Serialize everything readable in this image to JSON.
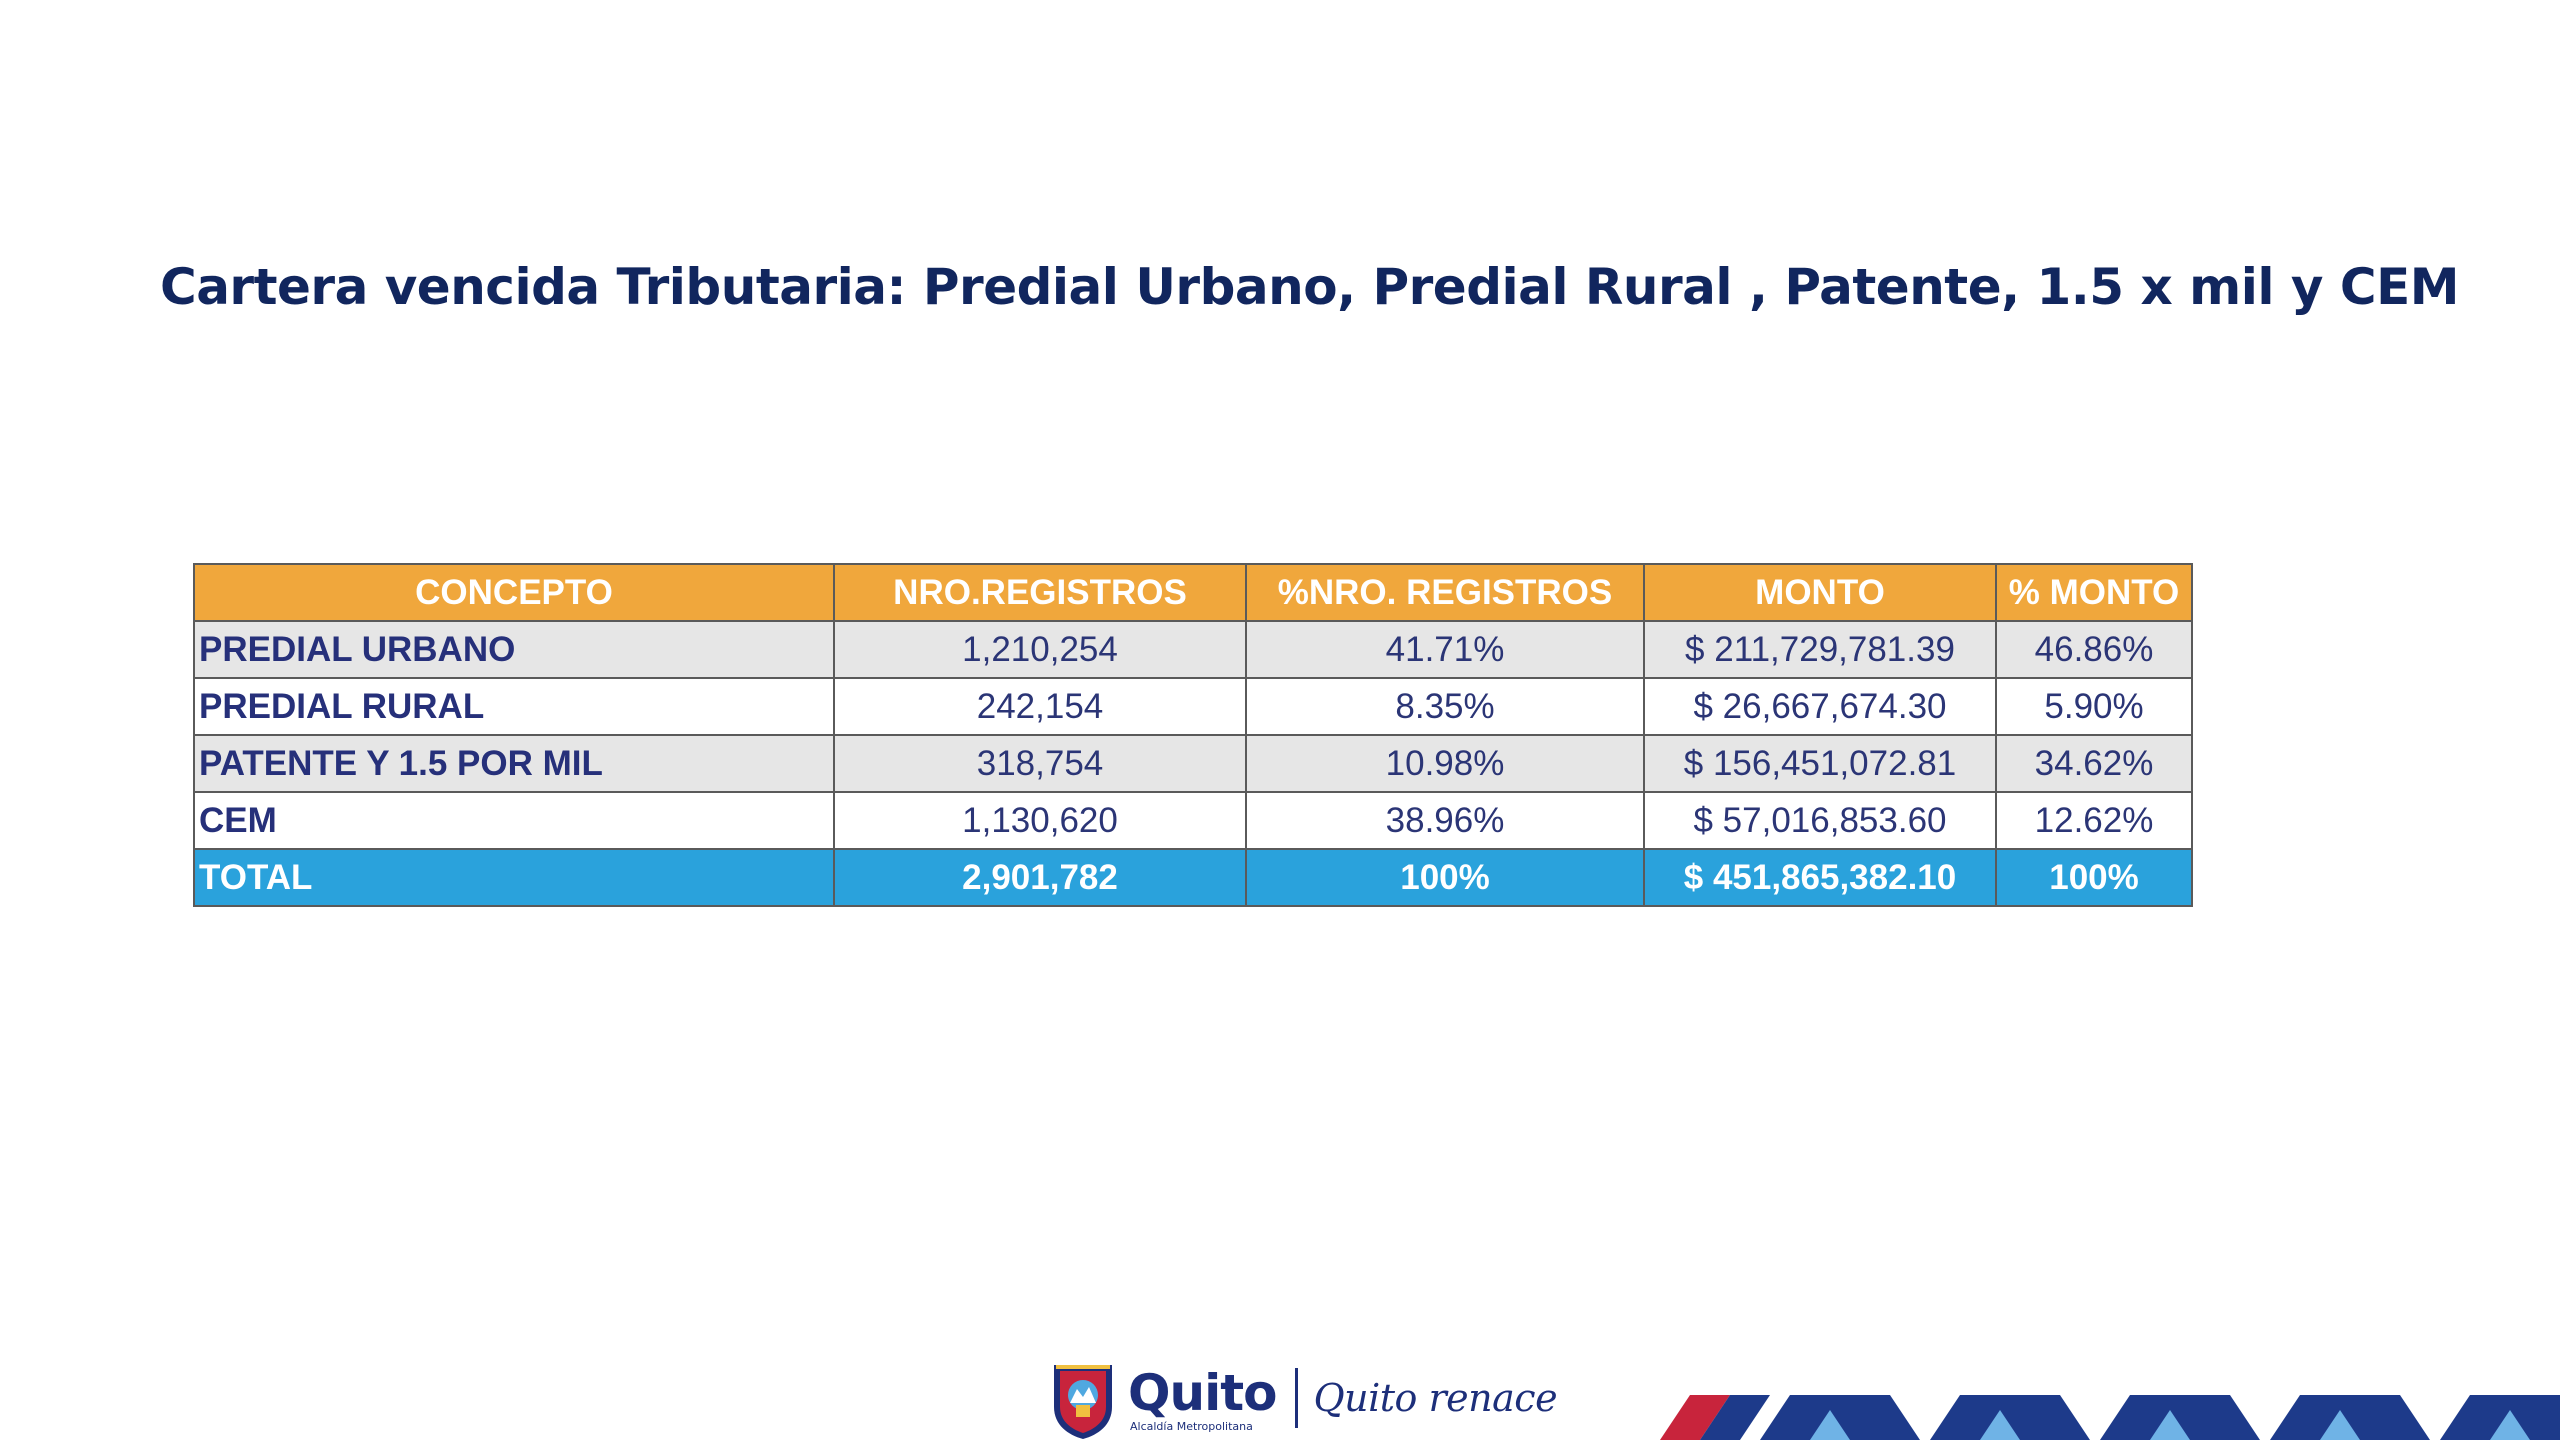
{
  "slide": {
    "title": "Cartera vencida Tributaria: Predial Urbano, Predial Rural , Patente, 1.5 x mil y CEM"
  },
  "table": {
    "headers": [
      "CONCEPTO",
      "NRO.REGISTROS",
      "%NRO. REGISTROS",
      "MONTO",
      "% MONTO"
    ],
    "rows": [
      {
        "concepto": "PREDIAL URBANO",
        "nro_registros": "1,210,254",
        "pct_nro_registros": "41.71%",
        "monto": "$ 211,729,781.39",
        "pct_monto": "46.86%"
      },
      {
        "concepto": "PREDIAL RURAL",
        "nro_registros": "242,154",
        "pct_nro_registros": "8.35%",
        "monto": "$ 26,667,674.30",
        "pct_monto": "5.90%"
      },
      {
        "concepto": "PATENTE Y 1.5 POR MIL",
        "nro_registros": "318,754",
        "pct_nro_registros": "10.98%",
        "monto": "$ 156,451,072.81",
        "pct_monto": "34.62%"
      },
      {
        "concepto": "CEM",
        "nro_registros": "1,130,620",
        "pct_nro_registros": "38.96%",
        "monto": "$ 57,016,853.60",
        "pct_monto": "12.62%"
      }
    ],
    "total": {
      "concepto": "TOTAL",
      "nro_registros": "2,901,782",
      "pct_nro_registros": "100%",
      "monto": "$ 451,865,382.10",
      "pct_monto": "100%"
    }
  },
  "footer": {
    "brand_name": "Quito",
    "brand_subtitle": "Alcaldía Metropolitana",
    "slogan": "Quito renace",
    "logo_icon": "coat-of-arms-icon"
  },
  "colors": {
    "title": "#11265e",
    "header_bg": "#f0a73c",
    "total_bg": "#2aa2dc",
    "row_alt_bg": "#e6e6e6",
    "body_text": "#2b3576",
    "brand": "#1d2f7a"
  }
}
